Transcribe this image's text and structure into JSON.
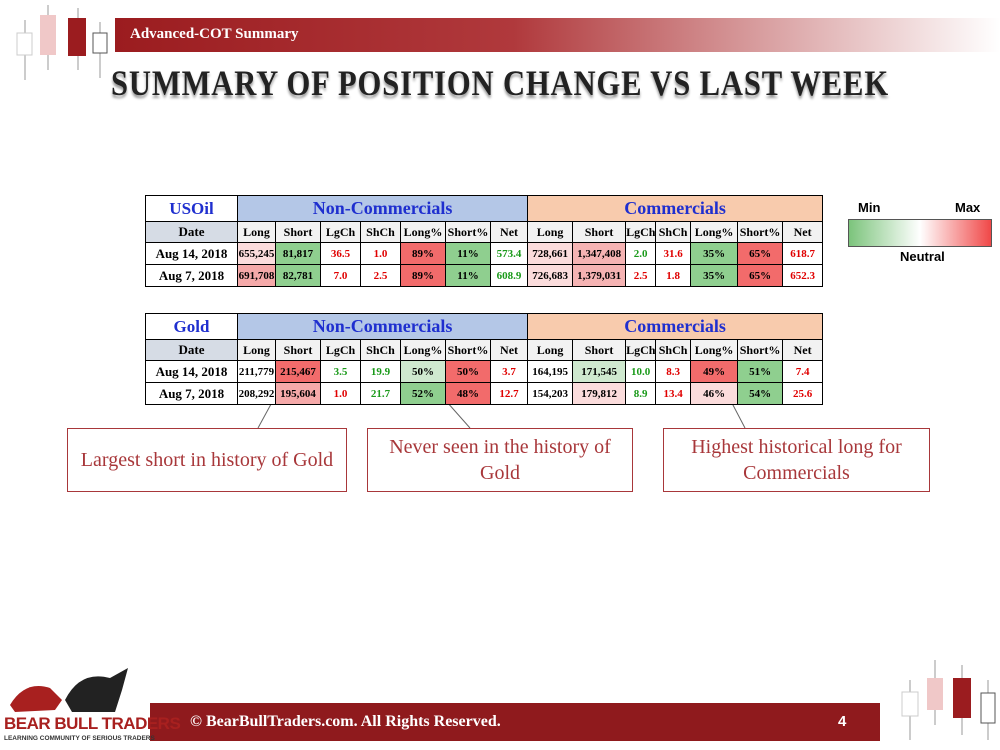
{
  "header": {
    "section": "Advanced-COT Summary",
    "title": "SUMMARY OF POSITION CHANGE VS LAST WEEK"
  },
  "tables": [
    {
      "name": "USOil",
      "groups": [
        "Non-Commercials",
        "Commercials"
      ],
      "columns": [
        "Date",
        "Long",
        "Short",
        "LgCh",
        "ShCh",
        "Long%",
        "Short%",
        "Net",
        "Long",
        "Short",
        "LgCh",
        "ShCh",
        "Long%",
        "Short%",
        "Net"
      ],
      "rows": [
        {
          "cells": [
            "Aug 14, 2018",
            "655,245",
            "81,817",
            "36.5",
            "1.0",
            "89%",
            "11%",
            "573.4",
            "728,661",
            "1,347,408",
            "2.0",
            "31.6",
            "35%",
            "65%",
            "618.7"
          ],
          "fills": [
            "#ffffff",
            "#fbdcdc",
            "#8fcf8f",
            "#ffffff",
            "#ffffff",
            "#f26b6b",
            "#8fcf8f",
            "#ffffff",
            "#fbdcdc",
            "#f5b3b3",
            "#ffffff",
            "#ffffff",
            "#8fcf8f",
            "#f26b6b",
            "#ffffff"
          ],
          "inks": [
            "#000000",
            "#000000",
            "#000000",
            "#e00000",
            "#e00000",
            "#000000",
            "#000000",
            "#1a9a1a",
            "#000000",
            "#000000",
            "#1a9a1a",
            "#e00000",
            "#000000",
            "#000000",
            "#e00000"
          ]
        },
        {
          "cells": [
            "Aug 7, 2018",
            "691,708",
            "82,781",
            "7.0",
            "2.5",
            "89%",
            "11%",
            "608.9",
            "726,683",
            "1,379,031",
            "2.5",
            "1.8",
            "35%",
            "65%",
            "652.3"
          ],
          "fills": [
            "#ffffff",
            "#f5a9a9",
            "#8fcf8f",
            "#ffffff",
            "#ffffff",
            "#f26b6b",
            "#8fcf8f",
            "#ffffff",
            "#fbdcdc",
            "#f5b3b3",
            "#ffffff",
            "#ffffff",
            "#8fcf8f",
            "#f26b6b",
            "#ffffff"
          ],
          "inks": [
            "#000000",
            "#000000",
            "#000000",
            "#e00000",
            "#e00000",
            "#000000",
            "#000000",
            "#1a9a1a",
            "#000000",
            "#000000",
            "#e00000",
            "#e00000",
            "#000000",
            "#000000",
            "#e00000"
          ]
        }
      ]
    },
    {
      "name": "Gold",
      "groups": [
        "Non-Commercials",
        "Commercials"
      ],
      "columns": [
        "Date",
        "Long",
        "Short",
        "LgCh",
        "ShCh",
        "Long%",
        "Short%",
        "Net",
        "Long",
        "Short",
        "LgCh",
        "ShCh",
        "Long%",
        "Short%",
        "Net"
      ],
      "rows": [
        {
          "cells": [
            "Aug 14, 2018",
            "211,779",
            "215,467",
            "3.5",
            "19.9",
            "50%",
            "50%",
            "3.7",
            "164,195",
            "171,545",
            "10.0",
            "8.3",
            "49%",
            "51%",
            "7.4"
          ],
          "fills": [
            "#ffffff",
            "#ffffff",
            "#f26b6b",
            "#ffffff",
            "#ffffff",
            "#cfe9cf",
            "#f26b6b",
            "#ffffff",
            "#ffffff",
            "#cfe9cf",
            "#ffffff",
            "#ffffff",
            "#f26b6b",
            "#8fcf8f",
            "#ffffff"
          ],
          "inks": [
            "#000000",
            "#000000",
            "#000000",
            "#1a9a1a",
            "#1a9a1a",
            "#000000",
            "#000000",
            "#e00000",
            "#000000",
            "#000000",
            "#1a9a1a",
            "#e00000",
            "#000000",
            "#000000",
            "#e00000"
          ]
        },
        {
          "cells": [
            "Aug 7, 2018",
            "208,292",
            "195,604",
            "1.0",
            "21.7",
            "52%",
            "48%",
            "12.7",
            "154,203",
            "179,812",
            "8.9",
            "13.4",
            "46%",
            "54%",
            "25.6"
          ],
          "fills": [
            "#ffffff",
            "#ffffff",
            "#f5a9a9",
            "#ffffff",
            "#ffffff",
            "#8fcf8f",
            "#f26b6b",
            "#ffffff",
            "#ffffff",
            "#fbdcdc",
            "#ffffff",
            "#ffffff",
            "#fbdcdc",
            "#8fcf8f",
            "#ffffff"
          ],
          "inks": [
            "#000000",
            "#000000",
            "#000000",
            "#e00000",
            "#1a9a1a",
            "#000000",
            "#000000",
            "#e00000",
            "#000000",
            "#000000",
            "#1a9a1a",
            "#e00000",
            "#000000",
            "#000000",
            "#e00000"
          ]
        }
      ]
    }
  ],
  "legend": {
    "min": "Min",
    "max": "Max",
    "neutral": "Neutral"
  },
  "callouts": [
    "Largest short in history of Gold",
    "Never seen in the history of Gold",
    "Highest historical long for Commercials"
  ],
  "footer": {
    "copyright": "© BearBullTraders.com. All Rights Reserved.",
    "page": "4",
    "logo": "BEAR BULL TRADERS",
    "tagline": "LEARNING COMMUNITY OF SERIOUS TRADERS"
  }
}
